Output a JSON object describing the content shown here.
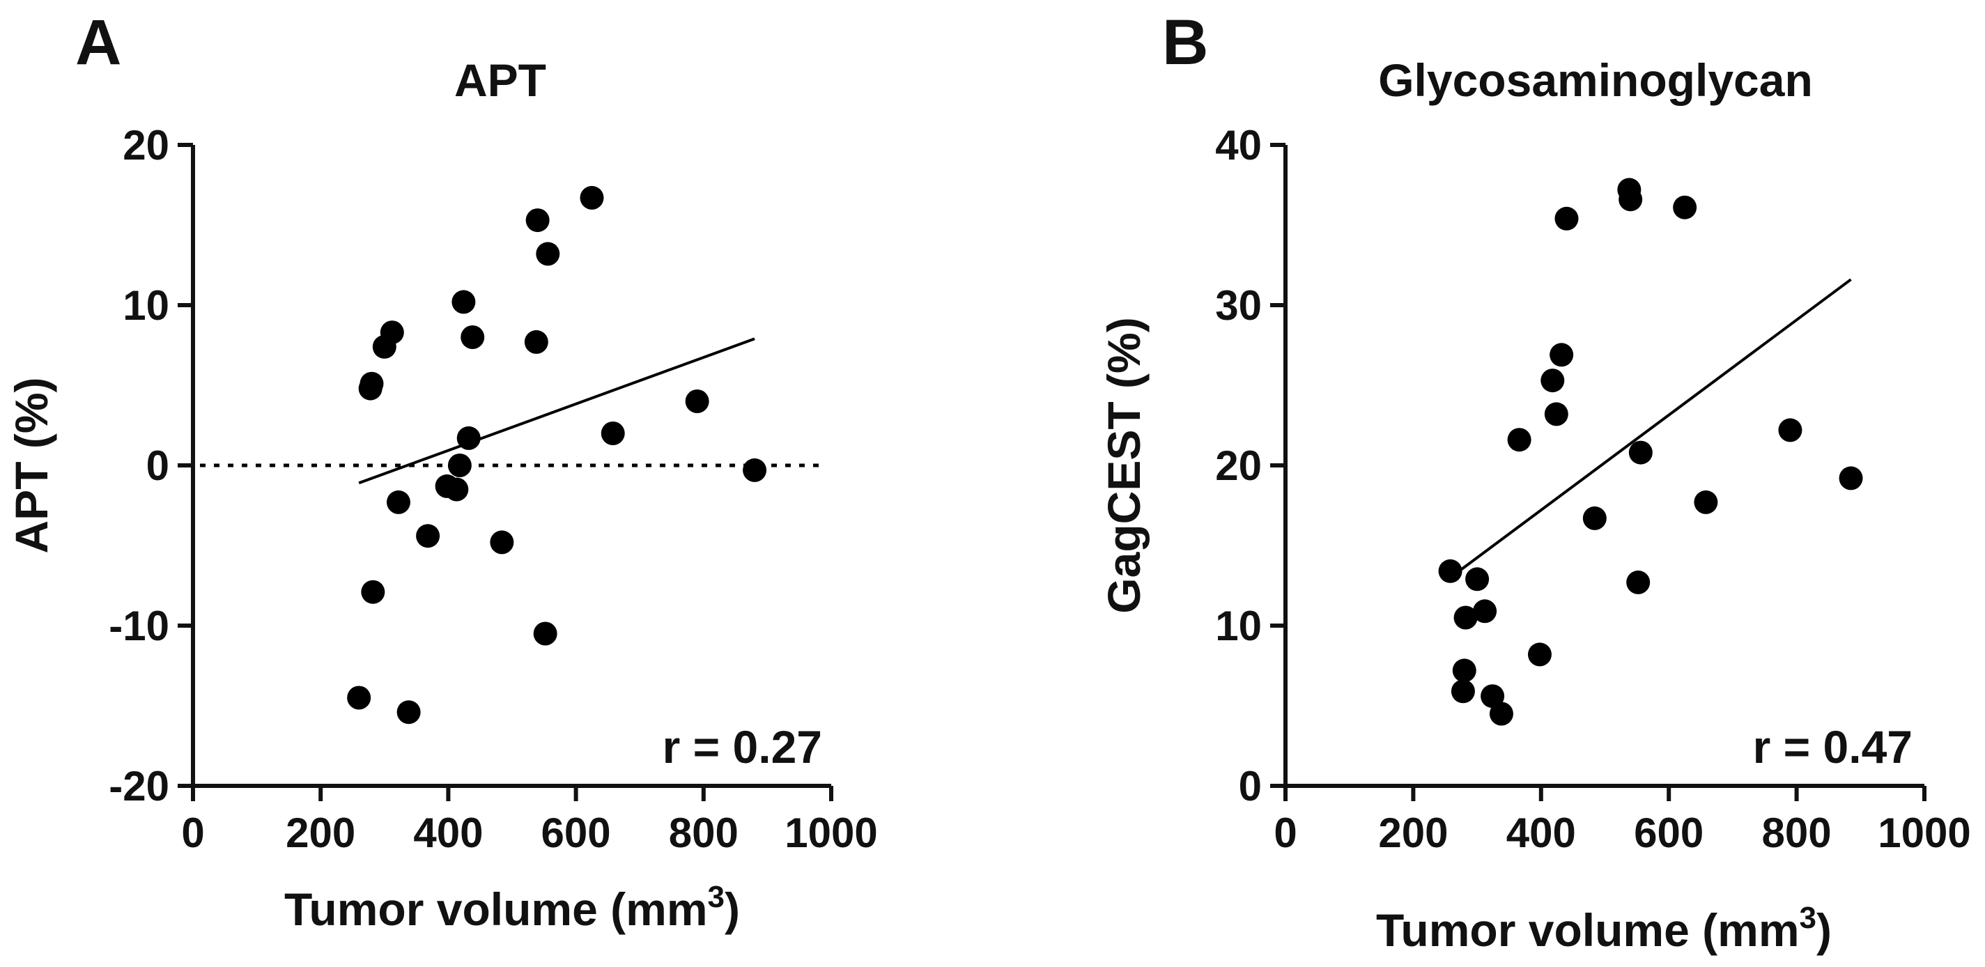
{
  "chart_data": [
    {
      "type": "scatter",
      "panel": "A",
      "title": "APT",
      "xlabel": "Tumor volume (mm",
      "xlabel_sup": "3",
      "xlabel_end": ")",
      "ylabel": "APT (%)",
      "xlim": [
        0,
        1000
      ],
      "ylim": [
        -20,
        20
      ],
      "xticks": [
        0,
        200,
        400,
        600,
        800,
        1000
      ],
      "yticks": [
        -20,
        -10,
        0,
        10,
        20
      ],
      "xtick_labels": [
        "0",
        "200",
        "400",
        "600",
        "800",
        "1000"
      ],
      "ytick_labels": [
        "-20",
        "-10",
        "0",
        "10",
        "20"
      ],
      "annotation": "r = 0.27",
      "zero_line": true,
      "fit_line": [
        [
          260,
          -1.1
        ],
        [
          880,
          7.9
        ]
      ],
      "x": [
        260,
        278,
        280,
        282,
        300,
        312,
        322,
        338,
        368,
        398,
        413,
        418,
        424,
        432,
        438,
        484,
        538,
        540,
        552,
        556,
        625,
        658,
        790,
        880
      ],
      "y": [
        -14.5,
        4.8,
        5.1,
        -7.9,
        7.4,
        8.3,
        -2.3,
        -15.4,
        -4.4,
        -1.3,
        -1.5,
        0,
        10.2,
        1.7,
        8.0,
        -4.8,
        7.7,
        15.3,
        -10.5,
        13.2,
        16.7,
        2.0,
        4.0,
        -0.3
      ]
    },
    {
      "type": "scatter",
      "panel": "B",
      "title": "Glycosaminoglycan",
      "xlabel": "Tumor volume (mm",
      "xlabel_sup": "3",
      "xlabel_end": ")",
      "ylabel": "GagCEST (%)",
      "xlim": [
        0,
        1000
      ],
      "ylim": [
        0,
        40
      ],
      "xticks": [
        0,
        200,
        400,
        600,
        800,
        1000
      ],
      "yticks": [
        0,
        10,
        20,
        30,
        40
      ],
      "xtick_labels": [
        "0",
        "200",
        "400",
        "600",
        "800",
        "1000"
      ],
      "ytick_labels": [
        "0",
        "10",
        "20",
        "30",
        "40"
      ],
      "annotation": "r = 0.47",
      "zero_line": false,
      "fit_line": [
        [
          275,
          13.5
        ],
        [
          885,
          31.6
        ]
      ],
      "x": [
        258,
        278,
        280,
        282,
        300,
        312,
        324,
        338,
        366,
        398,
        418,
        424,
        432,
        440,
        484,
        538,
        540,
        552,
        556,
        625,
        658,
        790,
        885
      ],
      "y": [
        13.4,
        5.9,
        7.2,
        10.5,
        12.9,
        10.9,
        5.6,
        4.5,
        21.6,
        8.2,
        25.3,
        23.2,
        26.9,
        35.4,
        16.7,
        37.2,
        36.6,
        12.7,
        20.8,
        36.1,
        17.7,
        22.2,
        19.2
      ]
    }
  ]
}
